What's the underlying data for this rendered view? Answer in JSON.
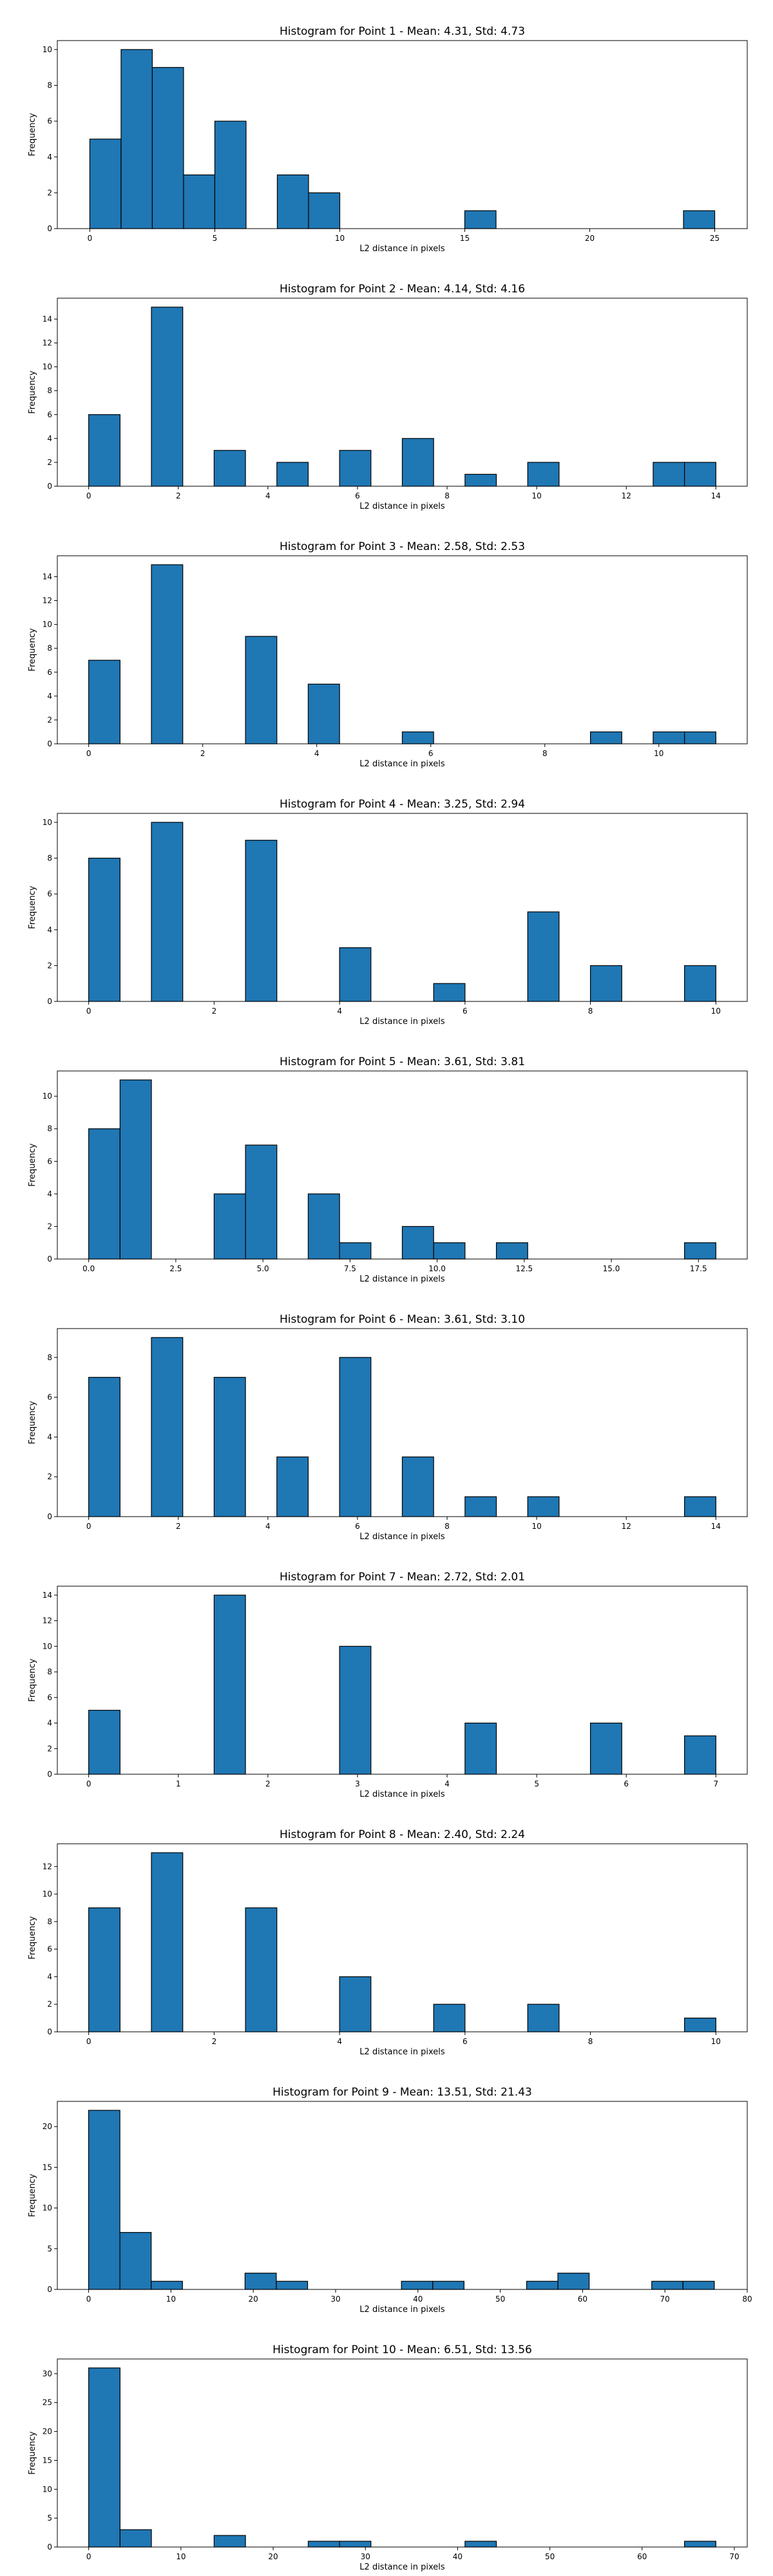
{
  "chart_data": [
    {
      "type": "bar",
      "title": "Histogram for Point 1 - Mean: 4.31, Std: 4.73",
      "xlabel": "L2 distance in pixels",
      "ylabel": "Frequency",
      "xlim": [
        -1.3,
        26.3
      ],
      "ylim": [
        0,
        10.5
      ],
      "xticks": [
        0,
        5,
        10,
        15,
        20,
        25
      ],
      "xtick_labels": [
        "0",
        "5",
        "10",
        "15",
        "20",
        "25"
      ],
      "yticks": [
        0,
        2,
        4,
        6,
        8,
        10
      ],
      "bin_edges": [
        0,
        1.25,
        2.5,
        3.75,
        5,
        6.25,
        7.5,
        8.75,
        10,
        11.25,
        12.5,
        13.75,
        15,
        16.25,
        17.5,
        18.75,
        20,
        21.25,
        22.5,
        23.75,
        25
      ],
      "counts": [
        5,
        10,
        9,
        3,
        6,
        0,
        3,
        2,
        0,
        0,
        0,
        0,
        1,
        0,
        0,
        0,
        0,
        0,
        0,
        1
      ]
    },
    {
      "type": "bar",
      "title": "Histogram for Point 2 - Mean: 4.14, Std: 4.16",
      "xlabel": "L2 distance in pixels",
      "ylabel": "Frequency",
      "xlim": [
        -0.7,
        14.7
      ],
      "ylim": [
        0,
        15.75
      ],
      "xticks": [
        0,
        2,
        4,
        6,
        8,
        10,
        12,
        14
      ],
      "xtick_labels": [
        "0",
        "2",
        "4",
        "6",
        "8",
        "10",
        "12",
        "14"
      ],
      "yticks": [
        0,
        2,
        4,
        6,
        8,
        10,
        12,
        14
      ],
      "bin_edges": [
        0,
        0.7,
        1.4,
        2.1,
        2.8,
        3.5,
        4.2,
        4.9,
        5.6,
        6.3,
        7.0,
        7.7,
        8.4,
        9.1,
        9.8,
        10.5,
        11.2,
        11.9,
        12.6,
        13.3,
        14.0
      ],
      "counts": [
        6,
        0,
        15,
        0,
        3,
        0,
        2,
        0,
        3,
        0,
        4,
        0,
        1,
        0,
        2,
        0,
        0,
        0,
        2,
        2
      ]
    },
    {
      "type": "bar",
      "title": "Histogram for Point 3 - Mean: 2.58, Std: 2.53",
      "xlabel": "L2 distance in pixels",
      "ylabel": "Frequency",
      "xlim": [
        -0.55,
        11.55
      ],
      "ylim": [
        0,
        15.75
      ],
      "xticks": [
        0,
        2,
        4,
        6,
        8,
        10
      ],
      "xtick_labels": [
        "0",
        "2",
        "4",
        "6",
        "8",
        "10"
      ],
      "yticks": [
        0,
        2,
        4,
        6,
        8,
        10,
        12,
        14
      ],
      "bin_edges": [
        0,
        0.55,
        1.1,
        1.65,
        2.2,
        2.75,
        3.3,
        3.85,
        4.4,
        4.95,
        5.5,
        6.05,
        6.6,
        7.15,
        7.7,
        8.25,
        8.8,
        9.35,
        9.9,
        10.45,
        11.0
      ],
      "counts": [
        7,
        0,
        15,
        0,
        0,
        9,
        0,
        5,
        0,
        0,
        1,
        0,
        0,
        0,
        0,
        0,
        1,
        0,
        1,
        1
      ]
    },
    {
      "type": "bar",
      "title": "Histogram for Point 4 - Mean: 3.25, Std: 2.94",
      "xlabel": "L2 distance in pixels",
      "ylabel": "Frequency",
      "xlim": [
        -0.5,
        10.5
      ],
      "ylim": [
        0,
        10.5
      ],
      "xticks": [
        0,
        2,
        4,
        6,
        8,
        10
      ],
      "xtick_labels": [
        "0",
        "2",
        "4",
        "6",
        "8",
        "10"
      ],
      "yticks": [
        0,
        2,
        4,
        6,
        8,
        10
      ],
      "bin_edges": [
        0,
        0.5,
        1,
        1.5,
        2,
        2.5,
        3,
        3.5,
        4,
        4.5,
        5,
        5.5,
        6,
        6.5,
        7,
        7.5,
        8,
        8.5,
        9,
        9.5,
        10
      ],
      "counts": [
        8,
        0,
        10,
        0,
        0,
        9,
        0,
        0,
        3,
        0,
        0,
        1,
        0,
        0,
        5,
        0,
        2,
        0,
        0,
        2
      ]
    },
    {
      "type": "bar",
      "title": "Histogram for Point 5 - Mean: 3.61, Std: 3.81",
      "xlabel": "L2 distance in pixels",
      "ylabel": "Frequency",
      "xlim": [
        -0.9,
        18.9
      ],
      "ylim": [
        0,
        11.55
      ],
      "xticks": [
        0,
        2.5,
        5,
        7.5,
        10,
        12.5,
        15,
        17.5
      ],
      "xtick_labels": [
        "0.0",
        "2.5",
        "5.0",
        "7.5",
        "10.0",
        "12.5",
        "15.0",
        "17.5"
      ],
      "yticks": [
        0,
        2,
        4,
        6,
        8,
        10
      ],
      "bin_edges": [
        0,
        0.9,
        1.8,
        2.7,
        3.6,
        4.5,
        5.4,
        6.3,
        7.2,
        8.1,
        9.0,
        9.9,
        10.8,
        11.7,
        12.6,
        13.5,
        14.4,
        15.3,
        16.2,
        17.1,
        18.0
      ],
      "counts": [
        8,
        11,
        0,
        0,
        4,
        7,
        0,
        4,
        1,
        0,
        2,
        1,
        0,
        1,
        0,
        0,
        0,
        0,
        0,
        1
      ]
    },
    {
      "type": "bar",
      "title": "Histogram for Point 6 - Mean: 3.61, Std: 3.10",
      "xlabel": "L2 distance in pixels",
      "ylabel": "Frequency",
      "xlim": [
        -0.7,
        14.7
      ],
      "ylim": [
        0,
        9.45
      ],
      "xticks": [
        0,
        2,
        4,
        6,
        8,
        10,
        12,
        14
      ],
      "xtick_labels": [
        "0",
        "2",
        "4",
        "6",
        "8",
        "10",
        "12",
        "14"
      ],
      "yticks": [
        0,
        2,
        4,
        6,
        8
      ],
      "bin_edges": [
        0,
        0.7,
        1.4,
        2.1,
        2.8,
        3.5,
        4.2,
        4.9,
        5.6,
        6.3,
        7.0,
        7.7,
        8.4,
        9.1,
        9.8,
        10.5,
        11.2,
        11.9,
        12.6,
        13.3,
        14.0
      ],
      "counts": [
        7,
        0,
        9,
        0,
        7,
        0,
        3,
        0,
        8,
        0,
        3,
        0,
        1,
        0,
        1,
        0,
        0,
        0,
        0,
        1
      ]
    },
    {
      "type": "bar",
      "title": "Histogram for Point 7 - Mean: 2.72, Std: 2.01",
      "xlabel": "L2 distance in pixels",
      "ylabel": "Frequency",
      "xlim": [
        -0.35,
        7.35
      ],
      "ylim": [
        0,
        14.7
      ],
      "xticks": [
        0,
        1,
        2,
        3,
        4,
        5,
        6,
        7
      ],
      "xtick_labels": [
        "0",
        "1",
        "2",
        "3",
        "4",
        "5",
        "6",
        "7"
      ],
      "yticks": [
        0,
        2,
        4,
        6,
        8,
        10,
        12,
        14
      ],
      "bin_edges": [
        0,
        0.35,
        0.7,
        1.05,
        1.4,
        1.75,
        2.1,
        2.45,
        2.8,
        3.15,
        3.5,
        3.85,
        4.2,
        4.55,
        4.9,
        5.25,
        5.6,
        5.95,
        6.3,
        6.65,
        7.0
      ],
      "counts": [
        5,
        0,
        0,
        0,
        14,
        0,
        0,
        0,
        10,
        0,
        0,
        0,
        4,
        0,
        0,
        0,
        4,
        0,
        0,
        3
      ]
    },
    {
      "type": "bar",
      "title": "Histogram for Point 8 - Mean: 2.40, Std: 2.24",
      "xlabel": "L2 distance in pixels",
      "ylabel": "Frequency",
      "xlim": [
        -0.5,
        10.5
      ],
      "ylim": [
        0,
        13.65
      ],
      "xticks": [
        0,
        2,
        4,
        6,
        8,
        10
      ],
      "xtick_labels": [
        "0",
        "2",
        "4",
        "6",
        "8",
        "10"
      ],
      "yticks": [
        0,
        2,
        4,
        6,
        8,
        10,
        12
      ],
      "bin_edges": [
        0,
        0.5,
        1,
        1.5,
        2,
        2.5,
        3,
        3.5,
        4,
        4.5,
        5,
        5.5,
        6,
        6.5,
        7,
        7.5,
        8,
        8.5,
        9,
        9.5,
        10
      ],
      "counts": [
        9,
        0,
        13,
        0,
        0,
        9,
        0,
        0,
        4,
        0,
        0,
        2,
        0,
        0,
        2,
        0,
        0,
        0,
        0,
        1
      ]
    },
    {
      "type": "bar",
      "title": "Histogram for Point 9 - Mean: 13.51, Std: 21.43",
      "xlabel": "L2 distance in pixels",
      "ylabel": "Frequency",
      "xlim": [
        -3.8,
        80.0
      ],
      "ylim": [
        0,
        23.1
      ],
      "xticks": [
        0,
        10,
        20,
        30,
        40,
        50,
        60,
        70,
        80
      ],
      "xtick_labels": [
        "0",
        "10",
        "20",
        "30",
        "40",
        "50",
        "60",
        "70",
        "80"
      ],
      "yticks": [
        0,
        5,
        10,
        15,
        20
      ],
      "bin_edges": [
        0,
        3.8,
        7.6,
        11.4,
        15.2,
        19.0,
        22.8,
        26.6,
        30.4,
        34.2,
        38.0,
        41.8,
        45.6,
        49.4,
        53.2,
        57.0,
        60.8,
        64.6,
        68.4,
        72.2,
        76.0
      ],
      "counts": [
        22,
        7,
        1,
        0,
        0,
        2,
        1,
        0,
        0,
        0,
        1,
        1,
        0,
        0,
        1,
        2,
        0,
        0,
        1,
        1
      ]
    },
    {
      "type": "bar",
      "title": "Histogram for Point 10 - Mean: 6.51, Std: 13.56",
      "xlabel": "L2 distance in pixels",
      "ylabel": "Frequency",
      "xlim": [
        -3.4,
        71.4
      ],
      "ylim": [
        0,
        32.55
      ],
      "xticks": [
        0,
        10,
        20,
        30,
        40,
        50,
        60,
        70
      ],
      "xtick_labels": [
        "0",
        "10",
        "20",
        "30",
        "40",
        "50",
        "60",
        "70"
      ],
      "yticks": [
        0,
        5,
        10,
        15,
        20,
        25,
        30
      ],
      "bin_edges": [
        0,
        3.4,
        6.8,
        10.2,
        13.6,
        17.0,
        20.4,
        23.8,
        27.2,
        30.6,
        34.0,
        37.4,
        40.8,
        44.2,
        47.6,
        51.0,
        54.4,
        57.8,
        61.2,
        64.6,
        68.0
      ],
      "counts": [
        31,
        3,
        0,
        0,
        2,
        0,
        0,
        1,
        1,
        0,
        0,
        0,
        1,
        0,
        0,
        0,
        0,
        0,
        0,
        1
      ]
    }
  ]
}
